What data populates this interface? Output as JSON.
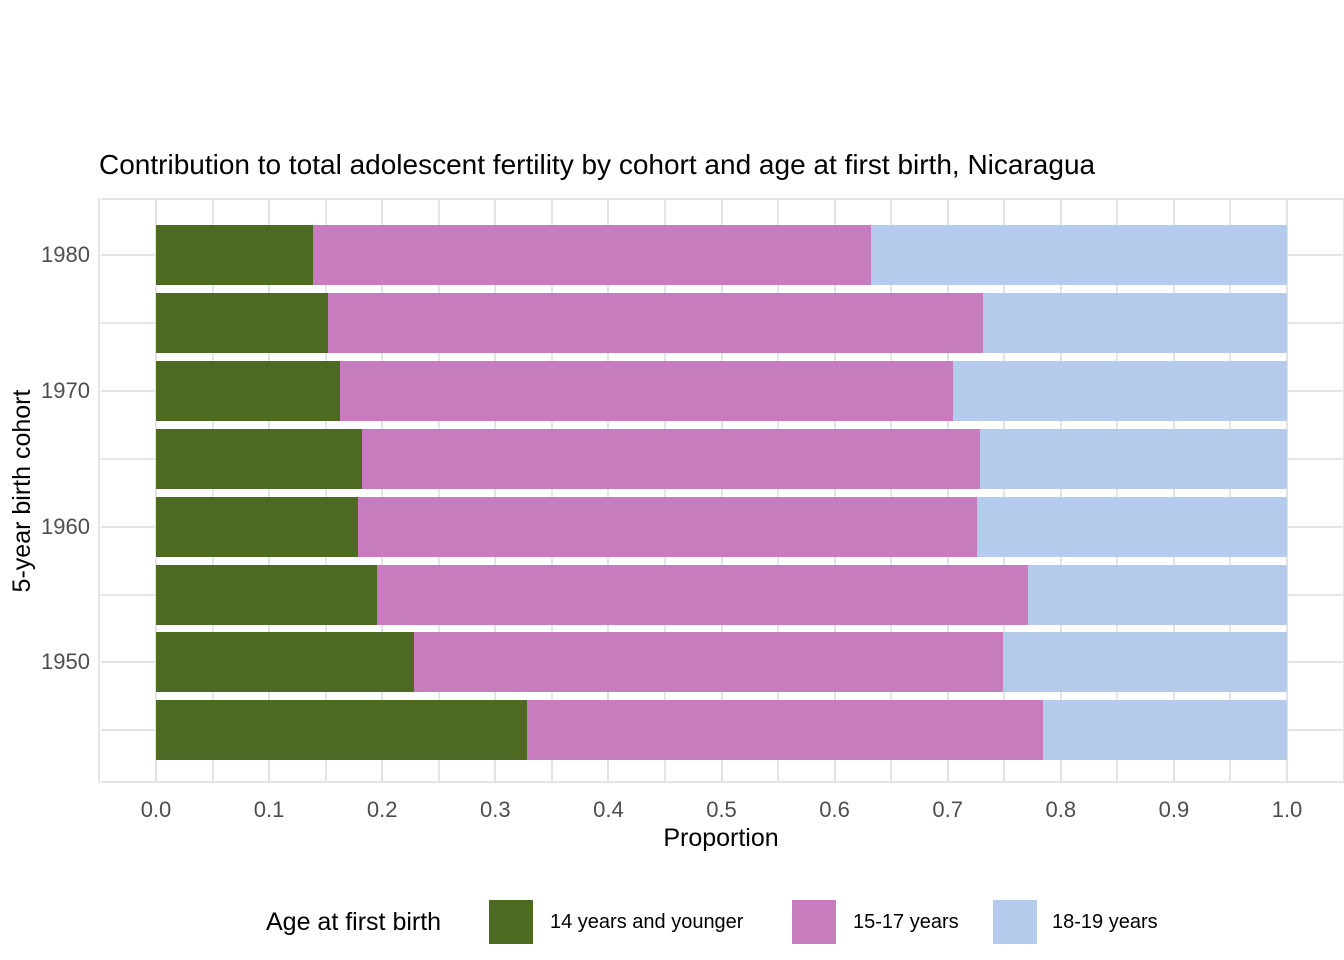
{
  "chart_data": {
    "type": "bar",
    "orientation": "horizontal",
    "stacked": true,
    "title": "Contribution to total adolescent fertility by cohort and age at first birth,  Nicaragua",
    "xlabel": "Proportion",
    "ylabel": "5-year birth cohort",
    "xlim": [
      0.0,
      1.0
    ],
    "grid": true,
    "legend_position": "bottom",
    "legend_title": "Age at first birth",
    "categories": [
      "1980",
      "1975",
      "1970",
      "1965",
      "1960",
      "1955",
      "1950",
      "1945"
    ],
    "y_ticks": [
      {
        "label": "1980",
        "bar_index": 0
      },
      {
        "label": "1970",
        "bar_index": 2
      },
      {
        "label": "1960",
        "bar_index": 4
      },
      {
        "label": "1950",
        "bar_index": 6
      }
    ],
    "x_ticks": [
      {
        "label": "0.0",
        "value": 0.0
      },
      {
        "label": "0.1",
        "value": 0.1
      },
      {
        "label": "0.2",
        "value": 0.2
      },
      {
        "label": "0.3",
        "value": 0.3
      },
      {
        "label": "0.4",
        "value": 0.4
      },
      {
        "label": "0.5",
        "value": 0.5
      },
      {
        "label": "0.6",
        "value": 0.6
      },
      {
        "label": "0.7",
        "value": 0.7
      },
      {
        "label": "0.8",
        "value": 0.8
      },
      {
        "label": "0.9",
        "value": 0.9
      },
      {
        "label": "1.0",
        "value": 1.0
      }
    ],
    "series": [
      {
        "name": "14 years and younger",
        "color": "#4c6a22",
        "values": [
          0.139,
          0.152,
          0.163,
          0.182,
          0.179,
          0.195,
          0.228,
          0.328
        ]
      },
      {
        "name": "15-17 years",
        "color": "#c77cbd",
        "values": [
          0.493,
          0.579,
          0.542,
          0.547,
          0.547,
          0.576,
          0.521,
          0.456
        ]
      },
      {
        "name": "18-19 years",
        "color": "#b5cbeb",
        "values": [
          0.368,
          0.269,
          0.295,
          0.271,
          0.274,
          0.229,
          0.251,
          0.216
        ]
      }
    ]
  },
  "colors": {
    "background": "#ffffff",
    "grid_major": "#e2e2e2",
    "grid_minor": "#e5e5e5",
    "tick_label": "#4d4d4d",
    "text": "#000000"
  }
}
